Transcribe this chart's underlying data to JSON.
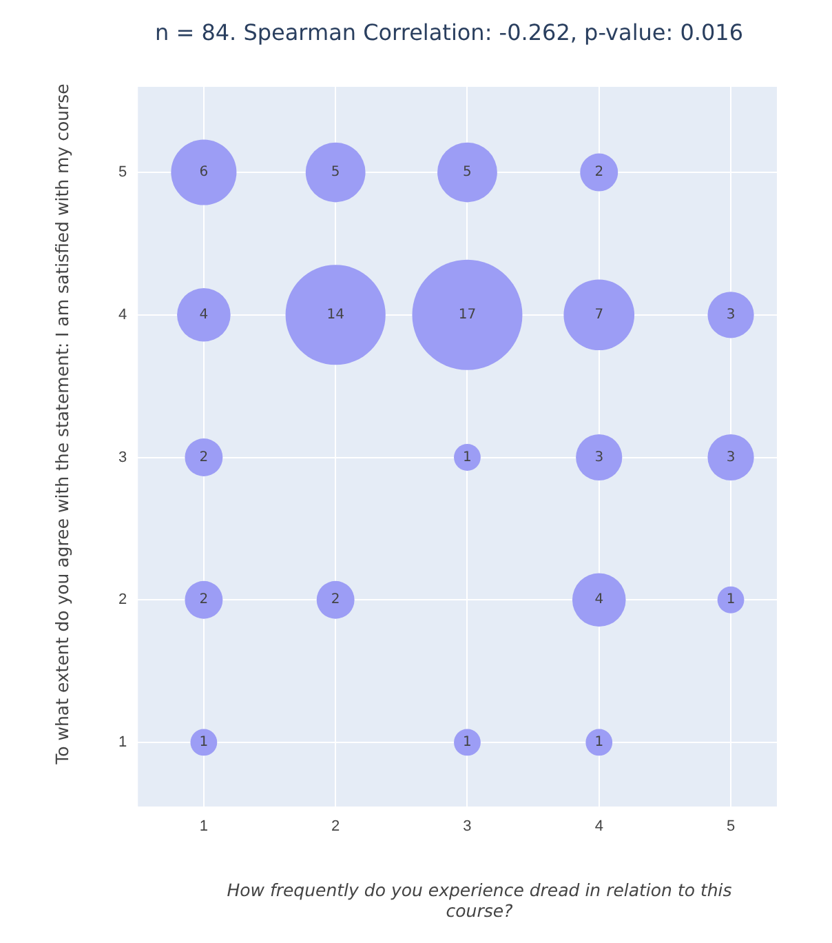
{
  "chart_data": {
    "type": "bubble",
    "title": "n = 84. Spearman Correlation: -0.262, p-value: 0.016",
    "xlabel": "How frequently do you experience dread in relation to this course?",
    "ylabel": "To what extent do you agree with the statement: I am satisfied with my course",
    "series": [
      {
        "color": "#9c9df5",
        "x": [
          1,
          2,
          3,
          4,
          1,
          2,
          3,
          4,
          5,
          1,
          3,
          4,
          5,
          1,
          2,
          4,
          5,
          1,
          3,
          4
        ],
        "values": [
          5,
          5,
          5,
          5,
          4,
          4,
          4,
          4,
          4,
          3,
          3,
          3,
          3,
          2,
          2,
          2,
          2,
          1,
          1,
          1
        ],
        "sizes": [
          6,
          5,
          5,
          2,
          4,
          14,
          17,
          7,
          3,
          2,
          1,
          3,
          3,
          2,
          2,
          4,
          1,
          1,
          1,
          1
        ],
        "value_labels": [
          "6",
          "5",
          "5",
          "2",
          "4",
          "14",
          "17",
          "7",
          "3",
          "2",
          "1",
          "3",
          "3",
          "2",
          "2",
          "4",
          "1",
          "1",
          "1",
          "1"
        ]
      }
    ],
    "xlim": [
      0.5,
      5.35
    ],
    "ylim": [
      0.55,
      5.6
    ],
    "xticks": [
      1,
      2,
      3,
      4,
      5
    ],
    "yticks": [
      1,
      2,
      3,
      4,
      5
    ],
    "grid": true,
    "legend": false
  }
}
